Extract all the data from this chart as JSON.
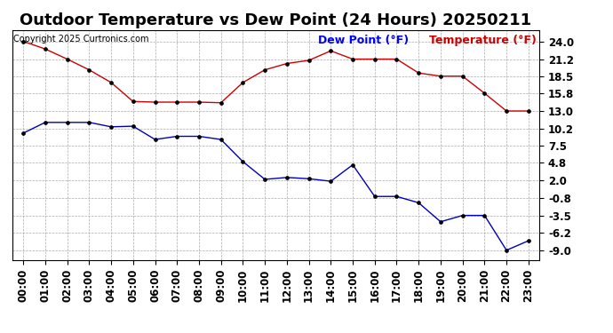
{
  "title": "Outdoor Temperature vs Dew Point (24 Hours) 20250211",
  "copyright_text": "Copyright 2025 Curtronics.com",
  "legend_dew": "Dew Point (°F)",
  "legend_temp": "Temperature (°F)",
  "hours": [
    "00:00",
    "01:00",
    "02:00",
    "03:00",
    "04:00",
    "05:00",
    "06:00",
    "07:00",
    "08:00",
    "09:00",
    "10:00",
    "11:00",
    "12:00",
    "13:00",
    "14:00",
    "15:00",
    "16:00",
    "17:00",
    "18:00",
    "19:00",
    "20:00",
    "21:00",
    "22:00",
    "23:00"
  ],
  "temperature": [
    9.5,
    11.2,
    11.2,
    11.2,
    10.5,
    10.6,
    8.5,
    9.0,
    9.0,
    8.5,
    5.0,
    2.2,
    2.5,
    2.3,
    1.9,
    4.5,
    -0.5,
    -0.5,
    -1.5,
    -4.5,
    -3.5,
    -3.5,
    -9.0,
    -7.5
  ],
  "dew_point": [
    24.0,
    22.8,
    21.2,
    19.5,
    17.5,
    14.5,
    14.4,
    14.4,
    14.4,
    14.3,
    17.5,
    19.5,
    20.5,
    21.0,
    22.5,
    21.2,
    21.2,
    21.2,
    19.0,
    18.5,
    18.5,
    15.8,
    13.0,
    13.0
  ],
  "y_ticks": [
    24.0,
    21.2,
    18.5,
    15.8,
    13.0,
    10.2,
    7.5,
    4.8,
    2.0,
    -0.8,
    -3.5,
    -6.2,
    -9.0
  ],
  "temp_color": "#0000bb",
  "dew_color": "#cc0000",
  "bg_color": "#ffffff",
  "grid_color": "#aaaaaa",
  "title_fontsize": 13,
  "tick_fontsize": 8.5,
  "legend_fontsize": 9
}
